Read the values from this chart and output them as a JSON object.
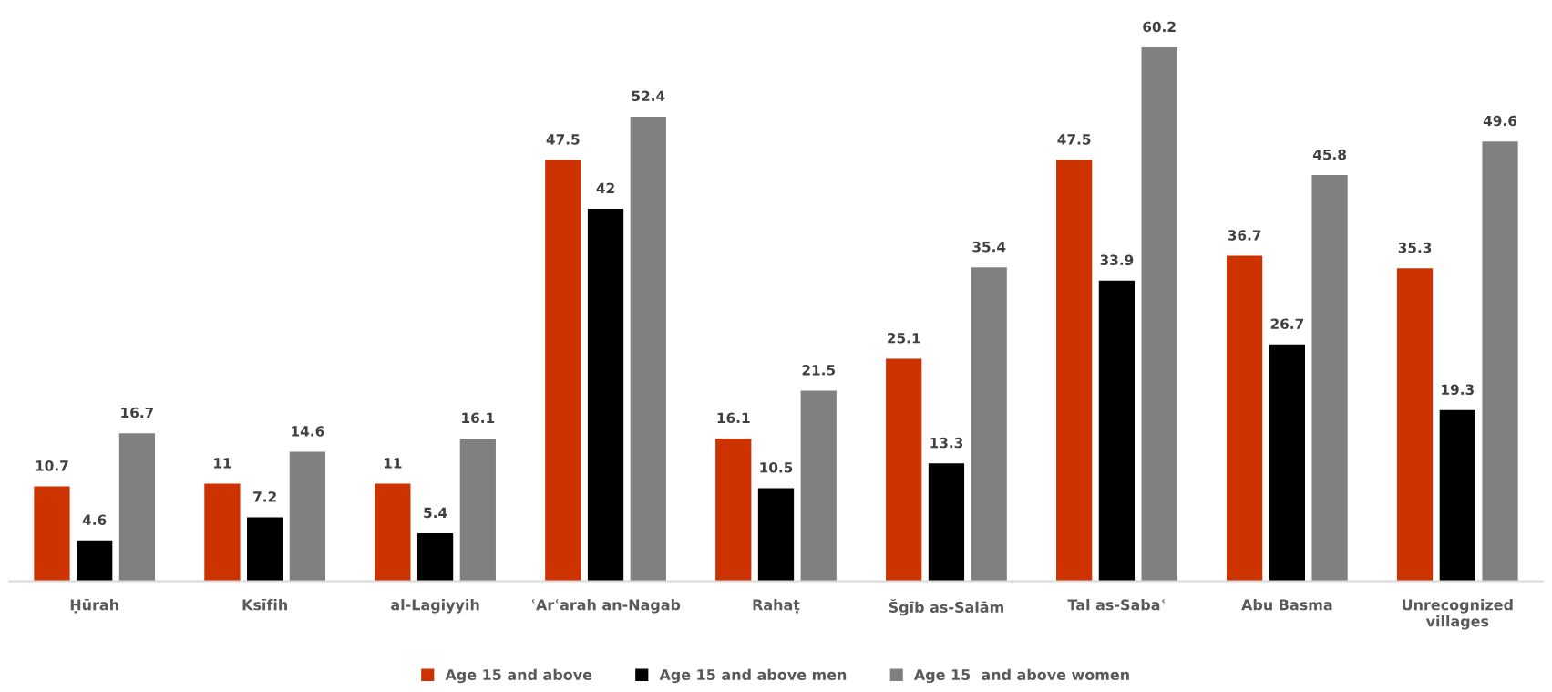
{
  "chart_data": {
    "type": "bar",
    "categories": [
      "Ḥūrah",
      "Ksīfih",
      "al-Lagiyyih",
      "ʿArʿarah an-Nagab",
      "Rahaṭ",
      "Šgīb as-Salām",
      "Tal as-Sabaʿ",
      "Abu Basma",
      "Unrecognized\nvillages"
    ],
    "series": [
      {
        "name": "Age 15 and above",
        "color": "#cc3300",
        "values": [
          10.7,
          11,
          11,
          47.5,
          16.1,
          25.1,
          47.5,
          36.7,
          35.3
        ]
      },
      {
        "name": "Age 15 and above men",
        "color": "#000000",
        "values": [
          4.6,
          7.2,
          5.4,
          42,
          10.5,
          13.3,
          33.9,
          26.7,
          19.3
        ]
      },
      {
        "name": "Age 15  and above women",
        "color": "#808080",
        "values": [
          16.7,
          14.6,
          16.1,
          52.4,
          21.5,
          35.4,
          60.2,
          45.8,
          49.6
        ]
      }
    ],
    "data_labels": true,
    "legend": "bottom",
    "grid": false,
    "tick_labels": "x"
  }
}
